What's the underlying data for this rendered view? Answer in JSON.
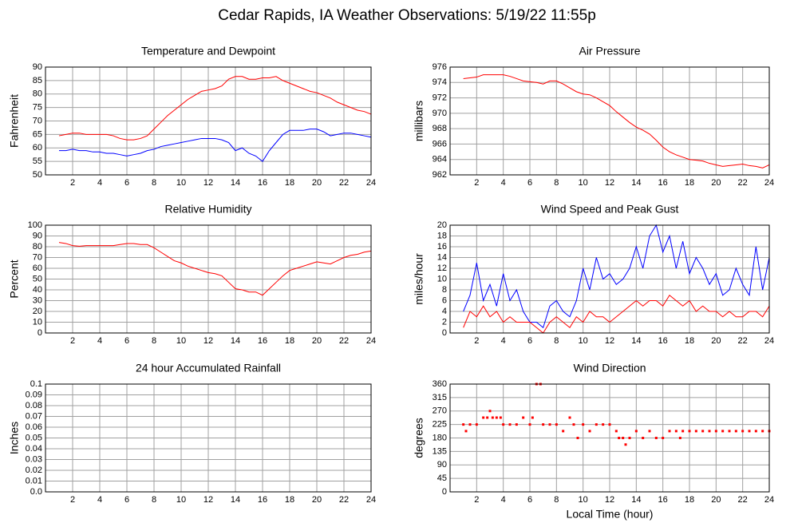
{
  "title": "Cedar Rapids, IA Weather Observations: 5/19/22 11:55p",
  "chart_data": [
    {
      "type": "line",
      "title": "Temperature and Dewpoint",
      "ylabel": "Fahrenheit",
      "x": [
        1,
        1.5,
        2,
        2.5,
        3,
        3.5,
        4,
        4.5,
        5,
        5.5,
        6,
        6.5,
        7,
        7.5,
        8,
        8.5,
        9,
        9.5,
        10,
        10.5,
        11,
        11.5,
        12,
        12.5,
        13,
        13.5,
        14,
        14.5,
        15,
        15.5,
        16,
        16.5,
        17,
        17.5,
        18,
        18.5,
        19,
        19.5,
        20,
        20.5,
        21,
        21.5,
        22,
        22.5,
        23,
        23.5,
        24
      ],
      "series": [
        {
          "color": "#ff0000",
          "values": [
            64.5,
            65,
            65.5,
            65.5,
            65,
            65,
            65,
            65,
            64.5,
            63.5,
            63,
            63,
            63.5,
            64.5,
            67,
            69.5,
            72,
            74,
            76,
            78,
            79.5,
            81,
            81.5,
            82,
            83,
            85.5,
            86.5,
            86.5,
            85.5,
            85.5,
            86,
            86,
            86.5,
            85,
            84,
            83,
            82,
            81,
            80.5,
            79.5,
            78.5,
            77,
            76,
            75,
            74,
            73.5,
            72.5
          ]
        },
        {
          "color": "#0000ff",
          "values": [
            59,
            59,
            59.5,
            59,
            59,
            58.5,
            58.5,
            58,
            58,
            57.5,
            57,
            57.5,
            58,
            59,
            59.5,
            60.5,
            61,
            61.5,
            62,
            62.5,
            63,
            63.5,
            63.5,
            63.5,
            63,
            62,
            59,
            60,
            58,
            57,
            55,
            59,
            62,
            65,
            66.5,
            66.5,
            66.5,
            67,
            67,
            66,
            64.5,
            65,
            65.5,
            65.5,
            65,
            64.5,
            64
          ]
        }
      ],
      "xlim": [
        0,
        24
      ],
      "xticks": [
        2,
        4,
        6,
        8,
        10,
        12,
        14,
        16,
        18,
        20,
        22,
        24
      ],
      "ylim": [
        50,
        90
      ],
      "yticks": [
        50,
        55,
        60,
        65,
        70,
        75,
        80,
        85,
        90
      ],
      "grid": true
    },
    {
      "type": "line",
      "title": "Air Pressure",
      "ylabel": "millibars",
      "x": [
        1,
        1.5,
        2,
        2.5,
        3,
        3.5,
        4,
        4.5,
        5,
        5.5,
        6,
        6.5,
        7,
        7.5,
        8,
        8.5,
        9,
        9.5,
        10,
        10.5,
        11,
        11.5,
        12,
        12.5,
        13,
        13.5,
        14,
        14.5,
        15,
        15.5,
        16,
        16.5,
        17,
        17.5,
        18,
        18.5,
        19,
        19.5,
        20,
        20.5,
        21,
        21.5,
        22,
        22.5,
        23,
        23.5,
        24
      ],
      "series": [
        {
          "color": "#ff0000",
          "values": [
            974.5,
            974.6,
            974.7,
            975,
            975,
            975,
            975,
            974.8,
            974.5,
            974.2,
            974.1,
            974,
            973.8,
            974.2,
            974.2,
            973.8,
            973.3,
            972.8,
            972.5,
            972.4,
            972,
            971.5,
            971,
            970.2,
            969.5,
            968.8,
            968.2,
            967.8,
            967.3,
            966.5,
            965.6,
            965,
            964.6,
            964.3,
            964,
            963.9,
            963.8,
            963.5,
            963.3,
            963.1,
            963.2,
            963.3,
            963.4,
            963.2,
            963.1,
            962.9,
            963.3
          ]
        }
      ],
      "xlim": [
        0,
        24
      ],
      "xticks": [
        2,
        4,
        6,
        8,
        10,
        12,
        14,
        16,
        18,
        20,
        22,
        24
      ],
      "ylim": [
        962,
        976
      ],
      "yticks": [
        962,
        964,
        966,
        968,
        970,
        972,
        974,
        976
      ],
      "grid": true
    },
    {
      "type": "line",
      "title": "Relative Humidity",
      "ylabel": "Percent",
      "x": [
        1,
        1.5,
        2,
        2.5,
        3,
        3.5,
        4,
        4.5,
        5,
        5.5,
        6,
        6.5,
        7,
        7.5,
        8,
        8.5,
        9,
        9.5,
        10,
        10.5,
        11,
        11.5,
        12,
        12.5,
        13,
        13.5,
        14,
        14.5,
        15,
        15.5,
        16,
        16.5,
        17,
        17.5,
        18,
        18.5,
        19,
        19.5,
        20,
        20.5,
        21,
        21.5,
        22,
        22.5,
        23,
        23.5,
        24
      ],
      "series": [
        {
          "color": "#ff0000",
          "values": [
            84,
            83,
            81,
            80.5,
            81,
            81,
            81,
            81,
            81,
            82,
            83,
            83,
            82,
            82,
            79,
            75,
            71,
            67,
            65,
            62,
            60,
            58,
            56,
            55,
            53,
            47,
            41,
            40,
            38,
            38,
            35,
            41,
            47,
            53,
            58,
            60,
            62,
            64,
            66,
            65,
            64,
            67,
            70,
            72,
            73,
            75,
            76
          ]
        }
      ],
      "xlim": [
        0,
        24
      ],
      "xticks": [
        2,
        4,
        6,
        8,
        10,
        12,
        14,
        16,
        18,
        20,
        22,
        24
      ],
      "ylim": [
        0,
        100
      ],
      "yticks": [
        0,
        10,
        20,
        30,
        40,
        50,
        60,
        70,
        80,
        90,
        100
      ],
      "grid": true
    },
    {
      "type": "line",
      "title": "Wind Speed and Peak Gust",
      "ylabel": "miles/hour",
      "x": [
        1,
        1.5,
        2,
        2.5,
        3,
        3.5,
        4,
        4.5,
        5,
        5.5,
        6,
        6.5,
        7,
        7.5,
        8,
        8.5,
        9,
        9.5,
        10,
        10.5,
        11,
        11.5,
        12,
        12.5,
        13,
        13.5,
        14,
        14.5,
        15,
        15.5,
        16,
        16.5,
        17,
        17.5,
        18,
        18.5,
        19,
        19.5,
        20,
        20.5,
        21,
        21.5,
        22,
        22.5,
        23,
        23.5,
        24
      ],
      "series": [
        {
          "color": "#0000ff",
          "values": [
            4,
            7,
            13,
            6,
            9,
            5,
            11,
            6,
            8,
            4,
            2,
            2,
            1,
            5,
            6,
            4,
            3,
            6,
            12,
            8,
            14,
            10,
            11,
            9,
            10,
            12,
            16,
            12,
            18,
            20,
            15,
            18,
            12,
            17,
            11,
            14,
            12,
            9,
            11,
            7,
            8,
            12,
            9,
            7,
            16,
            8,
            14
          ]
        },
        {
          "color": "#ff0000",
          "values": [
            1,
            4,
            3,
            5,
            3,
            4,
            2,
            3,
            2,
            2,
            2,
            1,
            0,
            2,
            3,
            2,
            1,
            3,
            2,
            4,
            3,
            3,
            2,
            3,
            4,
            5,
            6,
            5,
            6,
            6,
            5,
            7,
            6,
            5,
            6,
            4,
            5,
            4,
            4,
            3,
            4,
            3,
            3,
            4,
            4,
            3,
            5
          ]
        }
      ],
      "xlim": [
        0,
        24
      ],
      "xticks": [
        2,
        4,
        6,
        8,
        10,
        12,
        14,
        16,
        18,
        20,
        22,
        24
      ],
      "ylim": [
        0,
        20
      ],
      "yticks": [
        0,
        2,
        4,
        6,
        8,
        10,
        12,
        14,
        16,
        18,
        20
      ],
      "grid": true
    },
    {
      "type": "line",
      "title": "24 hour Accumulated Rainfall",
      "ylabel": "Inches",
      "x": [
        1,
        2,
        3,
        4,
        5,
        6,
        7,
        8,
        9,
        10,
        11,
        12,
        13,
        14,
        15,
        16,
        17,
        18,
        19,
        20,
        21,
        22,
        23,
        24
      ],
      "series": [
        {
          "color": "#ff0000",
          "values": [
            0,
            0,
            0,
            0,
            0,
            0,
            0,
            0,
            0,
            0,
            0,
            0,
            0,
            0,
            0,
            0,
            0,
            0,
            0,
            0,
            0,
            0,
            0,
            0
          ]
        }
      ],
      "xlim": [
        0,
        24
      ],
      "xticks": [
        2,
        4,
        6,
        8,
        10,
        12,
        14,
        16,
        18,
        20,
        22,
        24
      ],
      "ylim": [
        0,
        0.1
      ],
      "yticks": [
        {
          "value": 0,
          "label": "0.0"
        },
        0.01,
        0.02,
        0.03,
        0.04,
        0.05,
        0.06,
        0.07,
        0.08,
        0.09,
        0.1
      ],
      "grid": true
    },
    {
      "type": "scatter",
      "title": "Wind Direction",
      "ylabel": "degrees",
      "xlabel": "Local Time (hour)",
      "x": [
        1,
        1.2,
        1.5,
        2,
        2.5,
        2.8,
        3,
        3.2,
        3.5,
        3.8,
        4,
        4.5,
        5,
        5.5,
        6,
        6.2,
        6.5,
        6.8,
        7,
        7.5,
        8,
        8.5,
        9,
        9.3,
        9.6,
        10,
        10.5,
        11,
        11.5,
        12,
        12.5,
        12.7,
        13,
        13.2,
        13.5,
        14,
        14.5,
        15,
        15.5,
        16,
        16.5,
        17,
        17.3,
        17.5,
        18,
        18.5,
        19,
        19.5,
        20,
        20.5,
        21,
        21.5,
        22,
        22.5,
        23,
        23.5,
        24
      ],
      "series": [
        {
          "color": "#ff0000",
          "values": [
            225,
            203,
            225,
            225,
            248,
            248,
            270,
            248,
            248,
            248,
            225,
            225,
            225,
            248,
            225,
            248,
            360,
            360,
            225,
            225,
            225,
            203,
            248,
            225,
            180,
            225,
            203,
            225,
            225,
            225,
            203,
            180,
            180,
            158,
            180,
            203,
            180,
            203,
            180,
            180,
            203,
            203,
            180,
            203,
            203,
            203,
            203,
            203,
            203,
            203,
            203,
            203,
            203,
            203,
            203,
            203,
            203
          ]
        }
      ],
      "xlim": [
        0,
        24
      ],
      "xticks": [
        2,
        4,
        6,
        8,
        10,
        12,
        14,
        16,
        18,
        20,
        22,
        24
      ],
      "ylim": [
        0,
        360
      ],
      "yticks": [
        0,
        45,
        90,
        135,
        180,
        225,
        270,
        315,
        360
      ],
      "grid": true
    }
  ]
}
